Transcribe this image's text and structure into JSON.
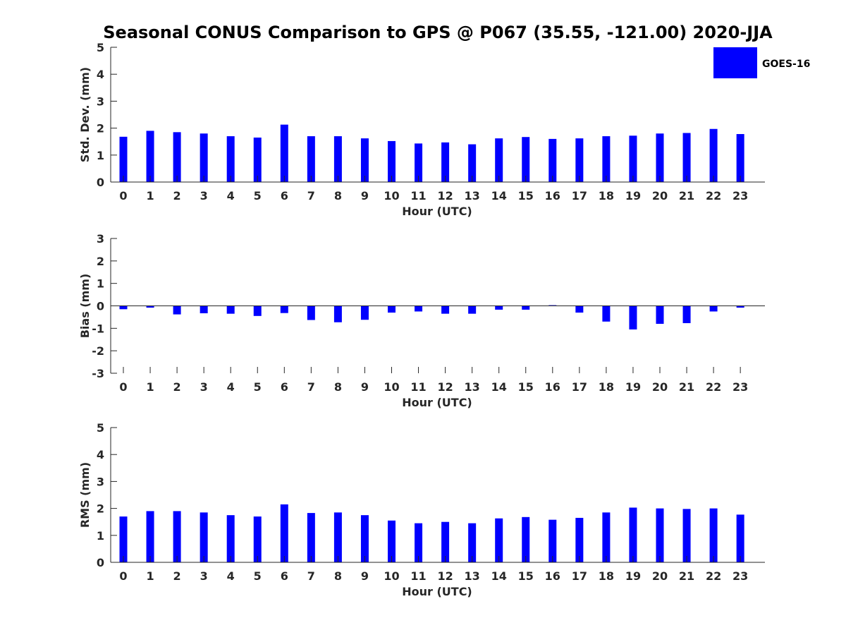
{
  "chart_data": {
    "title": "Seasonal CONUS Comparison to GPS @ P067 (35.55, -121.00) 2020-JJA",
    "legend": {
      "entries": [
        "GOES-16"
      ],
      "placement": "top-right outside"
    },
    "series_color": "#0000ff",
    "panels": [
      {
        "type": "bar",
        "ylabel": "Std. Dev. (mm)",
        "xlabel": "Hour (UTC)",
        "categories": [
          "0",
          "1",
          "2",
          "3",
          "4",
          "5",
          "6",
          "7",
          "8",
          "9",
          "10",
          "11",
          "12",
          "13",
          "14",
          "15",
          "16",
          "17",
          "18",
          "19",
          "20",
          "21",
          "22",
          "23"
        ],
        "series": [
          {
            "name": "GOES-16",
            "values": [
              1.68,
              1.9,
              1.85,
              1.8,
              1.7,
              1.65,
              2.13,
              1.7,
              1.7,
              1.62,
              1.52,
              1.43,
              1.47,
              1.4,
              1.62,
              1.67,
              1.6,
              1.62,
              1.7,
              1.72,
              1.8,
              1.82,
              1.97,
              1.78
            ]
          }
        ],
        "ylim": [
          0,
          5
        ],
        "yticks": [
          0,
          1,
          2,
          3,
          4,
          5
        ]
      },
      {
        "type": "bar",
        "ylabel": "Bias (mm)",
        "xlabel": "Hour (UTC)",
        "categories": [
          "0",
          "1",
          "2",
          "3",
          "4",
          "5",
          "6",
          "7",
          "8",
          "9",
          "10",
          "11",
          "12",
          "13",
          "14",
          "15",
          "16",
          "17",
          "18",
          "19",
          "20",
          "21",
          "22",
          "23"
        ],
        "series": [
          {
            "name": "GOES-16",
            "values": [
              -0.15,
              -0.08,
              -0.38,
              -0.33,
              -0.35,
              -0.45,
              -0.32,
              -0.63,
              -0.73,
              -0.62,
              -0.3,
              -0.25,
              -0.35,
              -0.35,
              -0.17,
              -0.17,
              0.03,
              -0.3,
              -0.7,
              -1.05,
              -0.8,
              -0.77,
              -0.25,
              -0.08
            ]
          }
        ],
        "ylim": [
          -3,
          3
        ],
        "yticks": [
          -3,
          -2,
          -1,
          0,
          1,
          2,
          3
        ]
      },
      {
        "type": "bar",
        "ylabel": "RMS (mm)",
        "xlabel": "Hour (UTC)",
        "categories": [
          "0",
          "1",
          "2",
          "3",
          "4",
          "5",
          "6",
          "7",
          "8",
          "9",
          "10",
          "11",
          "12",
          "13",
          "14",
          "15",
          "16",
          "17",
          "18",
          "19",
          "20",
          "21",
          "22",
          "23"
        ],
        "series": [
          {
            "name": "GOES-16",
            "values": [
              1.7,
              1.9,
              1.9,
              1.85,
              1.75,
              1.7,
              2.15,
              1.83,
              1.85,
              1.75,
              1.55,
              1.45,
              1.5,
              1.45,
              1.63,
              1.68,
              1.58,
              1.65,
              1.85,
              2.03,
              2.0,
              1.98,
              2.0,
              1.77
            ]
          }
        ],
        "ylim": [
          0,
          5
        ],
        "yticks": [
          0,
          1,
          2,
          3,
          4,
          5
        ]
      }
    ]
  }
}
